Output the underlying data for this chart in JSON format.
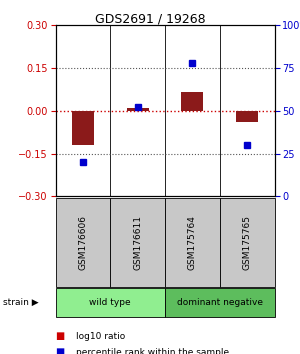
{
  "title": "GDS2691 / 19268",
  "samples": [
    "GSM176606",
    "GSM176611",
    "GSM175764",
    "GSM175765"
  ],
  "log10_ratio": [
    -0.12,
    0.01,
    0.065,
    -0.04
  ],
  "percentile_rank": [
    20,
    52,
    78,
    30
  ],
  "ylim_left": [
    -0.3,
    0.3
  ],
  "ylim_right": [
    0,
    100
  ],
  "yticks_left": [
    -0.3,
    -0.15,
    0,
    0.15,
    0.3
  ],
  "yticks_right": [
    0,
    25,
    50,
    75,
    100
  ],
  "ytick_labels_right": [
    "0",
    "25",
    "50",
    "75",
    "100%"
  ],
  "bar_color": "#8B1A1A",
  "square_color": "#0000CD",
  "hline_color_red": "#CC0000",
  "hline_color_dotted": "#555555",
  "strain_labels": [
    "wild type",
    "dominant negative"
  ],
  "strain_ranges": [
    [
      0,
      2
    ],
    [
      2,
      4
    ]
  ],
  "strain_color_light": "#90EE90",
  "strain_color_dark": "#5DBD5D",
  "bg_sample_label": "#C8C8C8",
  "legend_items": [
    "log10 ratio",
    "percentile rank within the sample"
  ],
  "legend_colors": [
    "#CC0000",
    "#0000CD"
  ],
  "bar_width": 0.4,
  "title_fontsize": 9,
  "tick_fontsize": 7,
  "label_fontsize": 6.5
}
